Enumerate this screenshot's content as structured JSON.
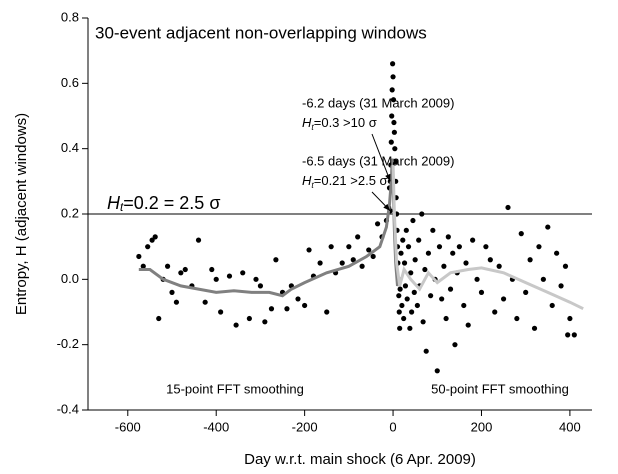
{
  "chart_data": {
    "type": "scatter",
    "title": "30-event adjacent non-overlapping windows",
    "x_label": "Day w.r.t. main shock (6 Apr. 2009)",
    "y_label": "Entropy, H (adjacent windows)",
    "xlim": [
      -690,
      450
    ],
    "ylim": [
      -0.4,
      0.8
    ],
    "xticks": [
      -600,
      -400,
      -200,
      0,
      200,
      400
    ],
    "yticks": [
      -0.4,
      -0.2,
      {
        "value": 0,
        "label": "0.0"
      },
      0.2,
      0.4,
      0.6,
      0.8
    ],
    "series": [
      {
        "type": "scatter",
        "color": "#000000",
        "x": [
          -575,
          -565,
          -555,
          -545,
          -538,
          -530,
          -520,
          -510,
          -500,
          -490,
          -480,
          -470,
          -455,
          -440,
          -425,
          -410,
          -400,
          -390,
          -370,
          -355,
          -340,
          -325,
          -310,
          -300,
          -290,
          -275,
          -265,
          -250,
          -240,
          -230,
          -215,
          -200,
          -190,
          -180,
          -165,
          -150,
          -140,
          -130,
          -115,
          -100,
          -90,
          -80,
          -70,
          -55,
          -45,
          -35,
          -25,
          -15,
          -10,
          -8,
          -6.5,
          -6.2,
          -5,
          -4,
          -3,
          -2,
          -1,
          0,
          1,
          2,
          3,
          4,
          5,
          6,
          7,
          8,
          9,
          10,
          11,
          12,
          13,
          14,
          15,
          16,
          18,
          20,
          22,
          24,
          26,
          28,
          30,
          32,
          35,
          38,
          40,
          42,
          45,
          48,
          50,
          55,
          58,
          60,
          65,
          68,
          72,
          75,
          80,
          85,
          90,
          95,
          100,
          105,
          110,
          115,
          120,
          125,
          130,
          135,
          140,
          145,
          150,
          160,
          165,
          170,
          180,
          190,
          200,
          210,
          220,
          230,
          240,
          250,
          260,
          270,
          280,
          290,
          300,
          310,
          320,
          330,
          340,
          350,
          360,
          370,
          380,
          390,
          395,
          400,
          410
        ],
        "values": [
          0.07,
          0.04,
          0.1,
          0.12,
          0.13,
          -0.12,
          0.0,
          0.04,
          -0.04,
          -0.07,
          0.02,
          0.03,
          -0.02,
          0.12,
          -0.07,
          0.03,
          0.0,
          -0.1,
          0.01,
          -0.14,
          0.02,
          -0.12,
          0.0,
          -0.02,
          -0.13,
          -0.09,
          0.06,
          -0.04,
          -0.09,
          -0.02,
          -0.06,
          -0.08,
          0.09,
          0.01,
          0.05,
          -0.1,
          0.1,
          0.02,
          0.05,
          0.1,
          0.06,
          0.13,
          0.04,
          0.09,
          0.07,
          0.17,
          0.13,
          0.18,
          0.22,
          0.28,
          0.21,
          0.3,
          0.35,
          0.42,
          0.5,
          0.58,
          0.66,
          0.62,
          0.55,
          0.48,
          0.45,
          0.4,
          0.36,
          0.3,
          0.25,
          0.2,
          0.15,
          0.1,
          0.05,
          0.0,
          -0.05,
          -0.1,
          -0.15,
          -0.03,
          0.08,
          -0.08,
          0.12,
          -0.12,
          0.05,
          -0.02,
          0.15,
          -0.06,
          0.1,
          -0.15,
          0.02,
          -0.1,
          0.18,
          -0.04,
          0.06,
          -0.08,
          0.12,
          -0.02,
          0.2,
          -0.13,
          0.03,
          -0.22,
          0.08,
          -0.05,
          0.15,
          0.0,
          -0.28,
          0.1,
          -0.06,
          0.04,
          -0.12,
          0.13,
          -0.03,
          0.08,
          -0.2,
          0.02,
          0.1,
          -0.08,
          0.05,
          -0.14,
          0.12,
          0.0,
          -0.04,
          0.1,
          0.06,
          -0.1,
          0.04,
          -0.06,
          0.22,
          0.0,
          -0.12,
          0.14,
          -0.04,
          0.06,
          -0.15,
          0.1,
          0.0,
          0.16,
          -0.08,
          0.08,
          -0.02,
          0.04,
          -0.17,
          -0.12,
          -0.17
        ]
      },
      {
        "type": "line",
        "label": "15-point FFT smoothing",
        "color": "#808080",
        "x": [
          -575,
          -550,
          -520,
          -480,
          -440,
          -400,
          -360,
          -320,
          -280,
          -250,
          -230,
          -200,
          -150,
          -100,
          -60,
          -30,
          -15,
          -8,
          -4,
          -2,
          0,
          3,
          6,
          10,
          15
        ],
        "values": [
          0.03,
          0.03,
          0.0,
          -0.02,
          -0.03,
          -0.04,
          -0.035,
          -0.04,
          -0.04,
          -0.05,
          -0.03,
          -0.01,
          0.02,
          0.04,
          0.07,
          0.1,
          0.16,
          0.23,
          0.3,
          0.37,
          0.3,
          0.15,
          0.05,
          -0.02,
          0.0
        ]
      },
      {
        "type": "line",
        "label": "50-point FFT smoothing",
        "color": "#c8c8c8",
        "x": [
          0,
          3,
          8,
          15,
          25,
          40,
          60,
          80,
          100,
          130,
          170,
          200,
          250,
          300,
          350,
          400,
          430
        ],
        "values": [
          0.35,
          0.2,
          0.05,
          -0.02,
          0.03,
          0.0,
          -0.03,
          0.02,
          -0.01,
          0.02,
          0.03,
          0.035,
          0.02,
          -0.01,
          -0.04,
          -0.07,
          -0.09
        ]
      }
    ],
    "threshold": {
      "value": 0.2,
      "pre": "H",
      "sub": "t",
      "post": "=0.2 = 2.5 σ"
    },
    "annotations": [
      {
        "x": -6.2,
        "y": 0.3,
        "line1": "-6.2 days (31 March 2009)",
        "pre": "H",
        "sub": "t",
        "post": "=0.3 >10 σ"
      },
      {
        "x": -6.5,
        "y": 0.21,
        "line1": "-6.5 days (31 March 2009)",
        "pre": "H",
        "sub": "t",
        "post": "=0.21 >2.5 σ"
      }
    ]
  }
}
